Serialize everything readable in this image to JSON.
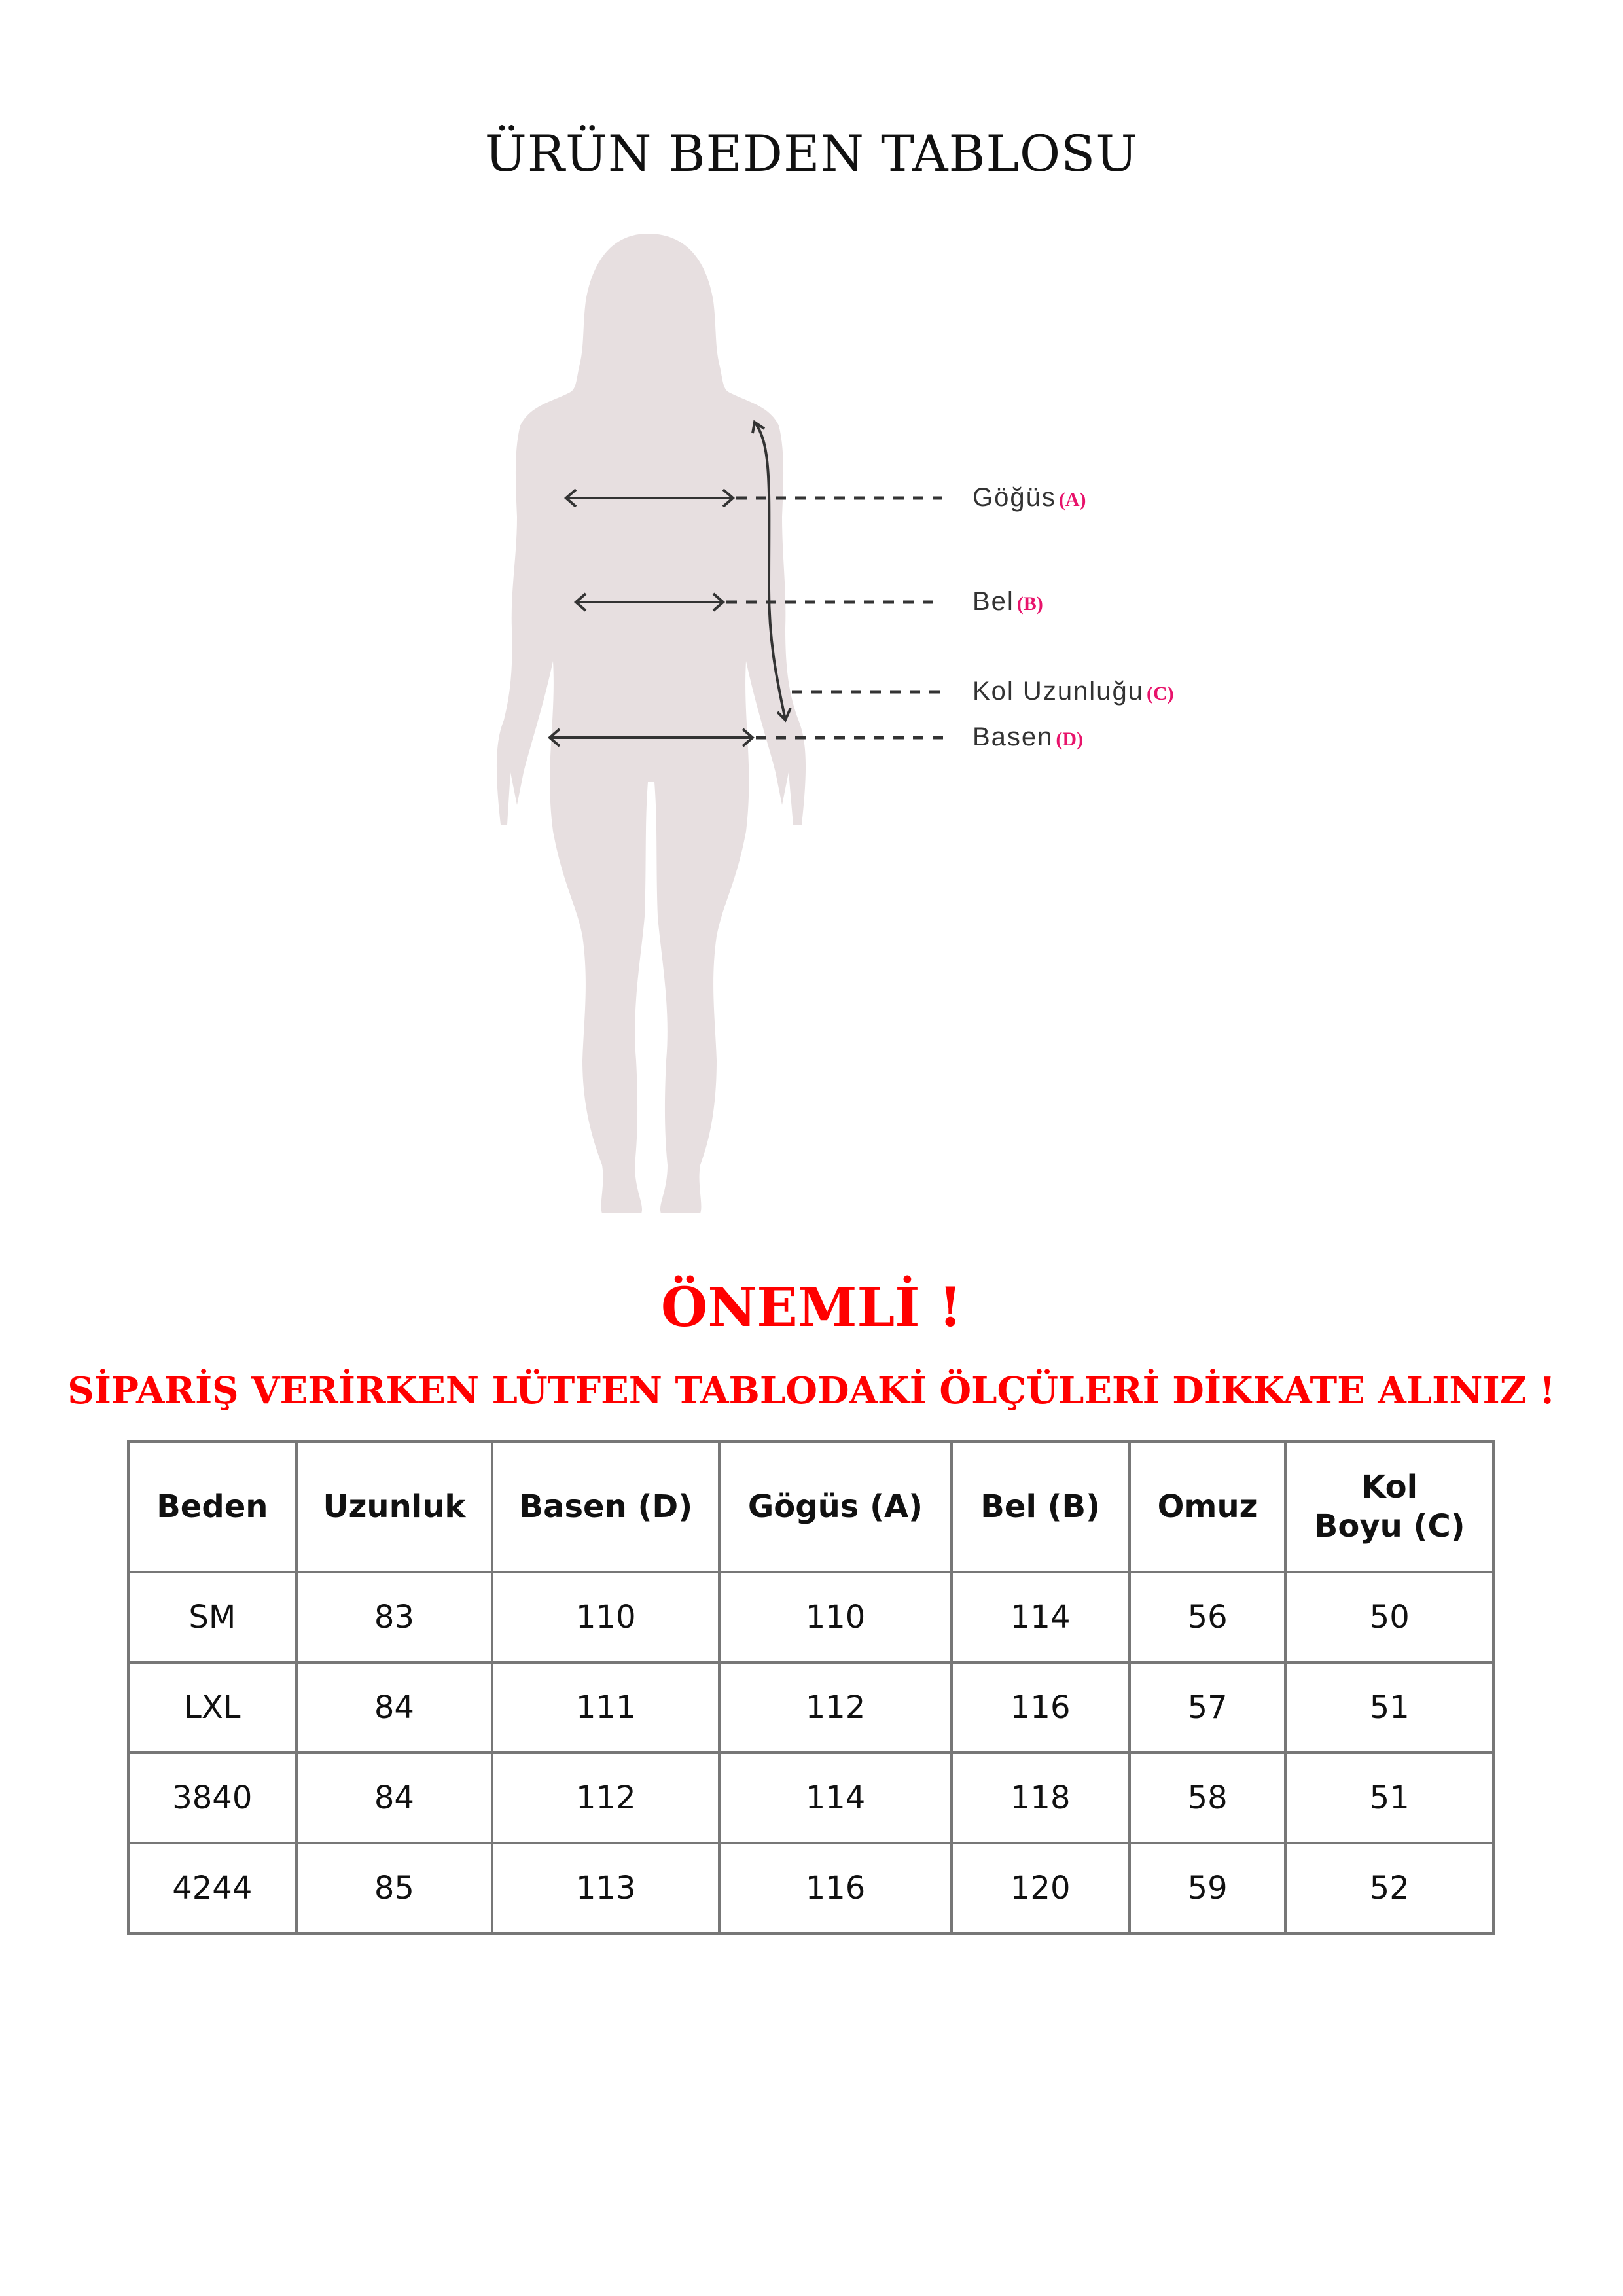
{
  "title": "ÜRÜN BEDEN TABLOSU",
  "figure": {
    "labels": [
      {
        "name": "Göğüs",
        "code": "(A)"
      },
      {
        "name": "Bel",
        "code": "(B)"
      },
      {
        "name": "Kol Uzunluğu",
        "code": "(C)"
      },
      {
        "name": "Basen",
        "code": "(D)"
      }
    ],
    "silhouette_color": "#e7dfe0",
    "code_color": "#e8136b"
  },
  "notice": {
    "heading": "ÖNEMLİ !",
    "text": "SİPARİŞ VERİRKEN LÜTFEN TABLODAKİ ÖLÇÜLERİ DİKKATE ALINIZ !",
    "color": "#ff0000"
  },
  "table": {
    "headers": [
      "Beden",
      "Uzunluk",
      "Basen (D)",
      "Gögüs (A)",
      "Bel (B)",
      "Omuz",
      "Kol Boyu (C)"
    ],
    "rows": [
      [
        "SM",
        "83",
        "110",
        "110",
        "114",
        "56",
        "50"
      ],
      [
        "LXL",
        "84",
        "111",
        "112",
        "116",
        "57",
        "51"
      ],
      [
        "3840",
        "84",
        "112",
        "114",
        "118",
        "58",
        "51"
      ],
      [
        "4244",
        "85",
        "113",
        "116",
        "120",
        "59",
        "52"
      ]
    ]
  }
}
